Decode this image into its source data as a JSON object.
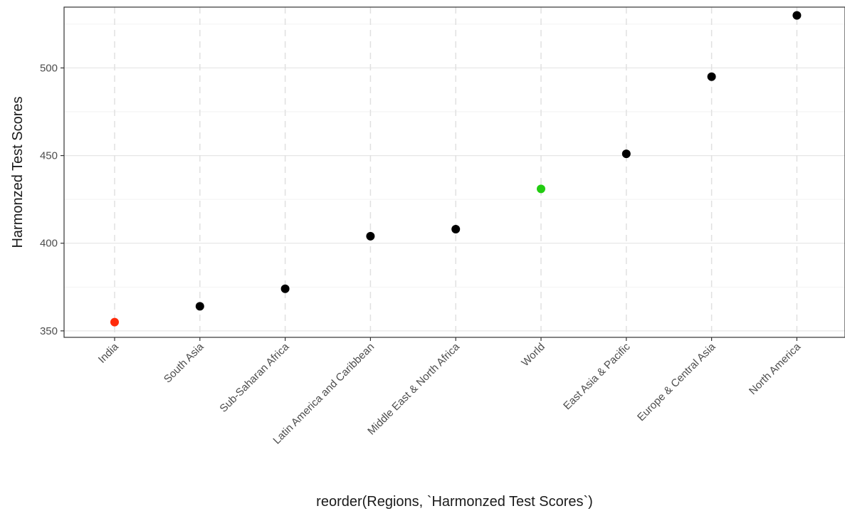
{
  "chart_data": {
    "type": "scatter",
    "xlabel": "reorder(Regions, `Harmonzed Test Scores`)",
    "ylabel": "Harmonzed Test Scores",
    "categories": [
      "India",
      "South Asia",
      "Sub-Saharan Africa",
      "Latin America and Caribbean",
      "Middle East & North Africa",
      "World",
      "East Asia & Pacific",
      "Europe & Central Asia",
      "North America"
    ],
    "values": [
      355,
      364,
      374,
      404,
      408,
      431,
      451,
      495,
      530
    ],
    "point_colors": [
      "#ff2a0a",
      "#000000",
      "#000000",
      "#000000",
      "#000000",
      "#22cc11",
      "#000000",
      "#000000",
      "#000000"
    ],
    "yticks": [
      350,
      400,
      450,
      500
    ],
    "ylim": [
      346.3,
      534.7
    ],
    "grid": true,
    "vertical_grid_style": "dashed",
    "theme": "bw"
  }
}
